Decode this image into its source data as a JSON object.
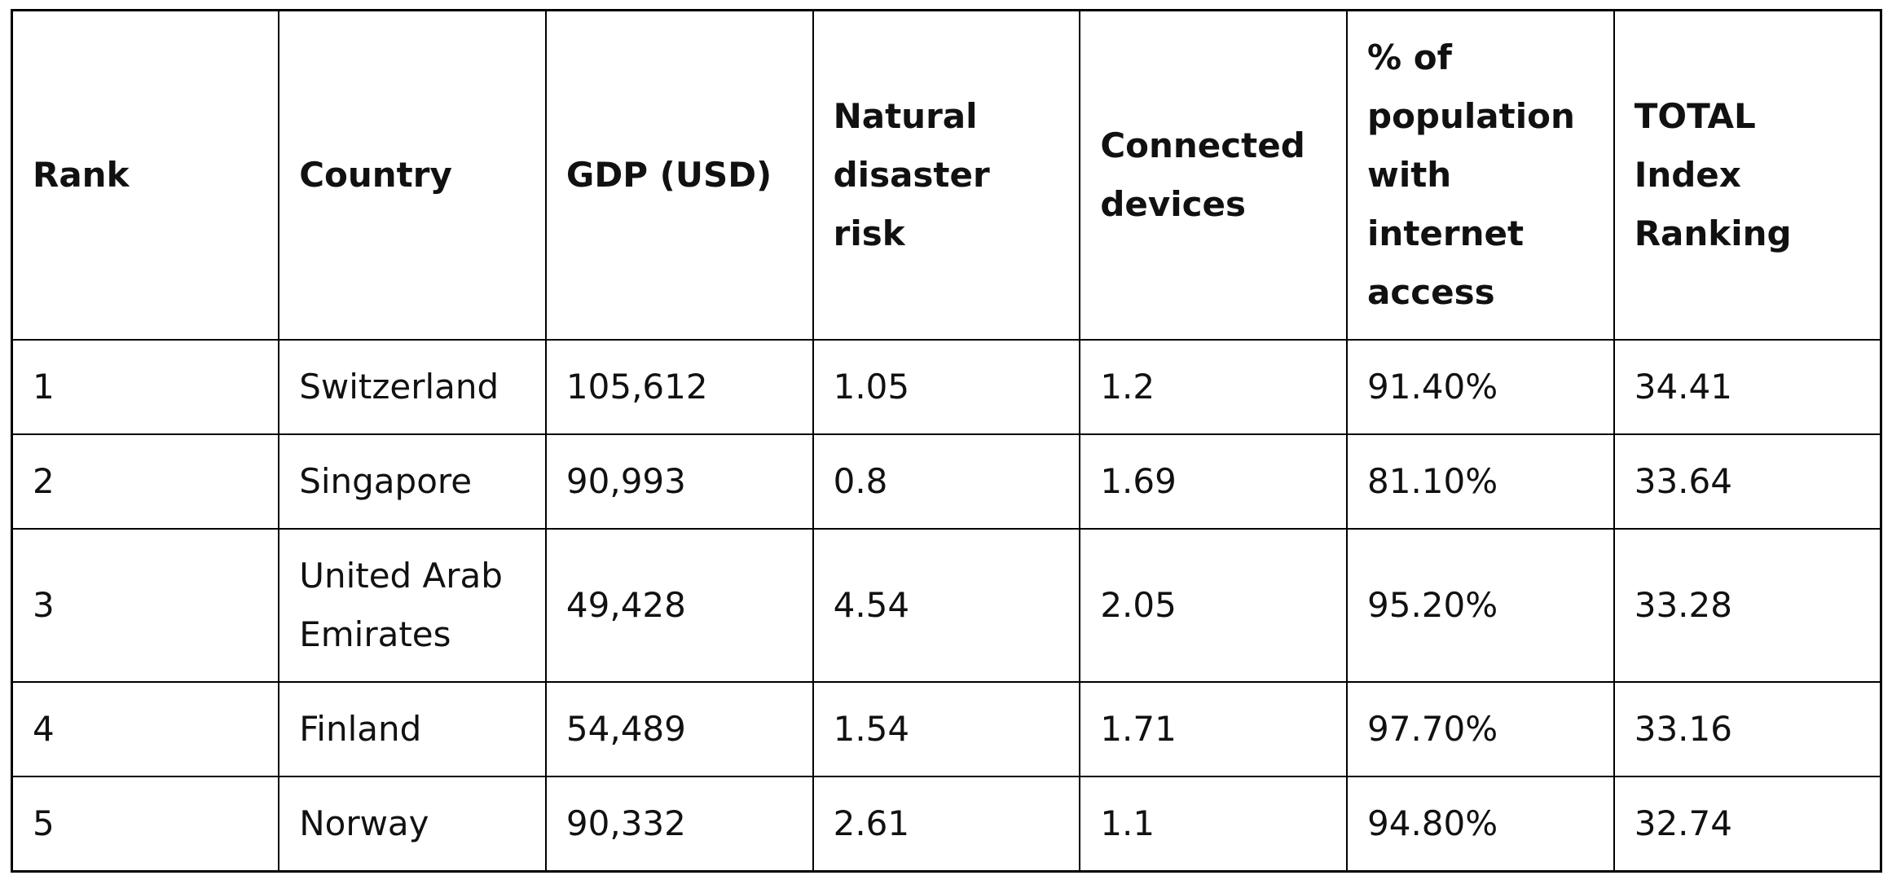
{
  "colors": {
    "background": "#ffffff",
    "border": "#000000",
    "text": "#111111"
  },
  "chart_data": {
    "type": "table",
    "title": "",
    "columns": [
      "Rank",
      "Country",
      "GDP (USD)",
      "Natural disaster risk",
      "Connected devices",
      "% of population with internet access",
      "TOTAL Index Ranking"
    ],
    "rows": [
      [
        "1",
        "Switzerland",
        "105,612",
        "1.05",
        "1.2",
        "91.40%",
        "34.41"
      ],
      [
        "2",
        "Singapore",
        "90,993",
        "0.8",
        "1.69",
        "81.10%",
        "33.64"
      ],
      [
        "3",
        "United Arab Emirates",
        "49,428",
        "4.54",
        "2.05",
        "95.20%",
        "33.28"
      ],
      [
        "4",
        "Finland",
        "54,489",
        "1.54",
        "1.71",
        "97.70%",
        "33.16"
      ],
      [
        "5",
        "Norway",
        "90,332",
        "2.61",
        "1.1",
        "94.80%",
        "32.74"
      ]
    ]
  },
  "table": {
    "columns": [
      {
        "label": "Rank"
      },
      {
        "label": "Country"
      },
      {
        "label": "GDP (USD)"
      },
      {
        "label": "Natural disaster risk"
      },
      {
        "label": "Connected devices"
      },
      {
        "label": "% of population with internet access"
      },
      {
        "label": "TOTAL Index Ranking"
      }
    ],
    "rows": [
      [
        "1",
        "Switzerland",
        "105,612",
        "1.05",
        "1.2",
        "91.40%",
        "34.41"
      ],
      [
        "2",
        "Singapore",
        "90,993",
        "0.8",
        "1.69",
        "81.10%",
        "33.64"
      ],
      [
        "3",
        "United Arab Emirates",
        "49,428",
        "4.54",
        "2.05",
        "95.20%",
        "33.28"
      ],
      [
        "4",
        "Finland",
        "54,489",
        "1.54",
        "1.71",
        "97.70%",
        "33.16"
      ],
      [
        "5",
        "Norway",
        "90,332",
        "2.61",
        "1.1",
        "94.80%",
        "32.74"
      ]
    ]
  }
}
